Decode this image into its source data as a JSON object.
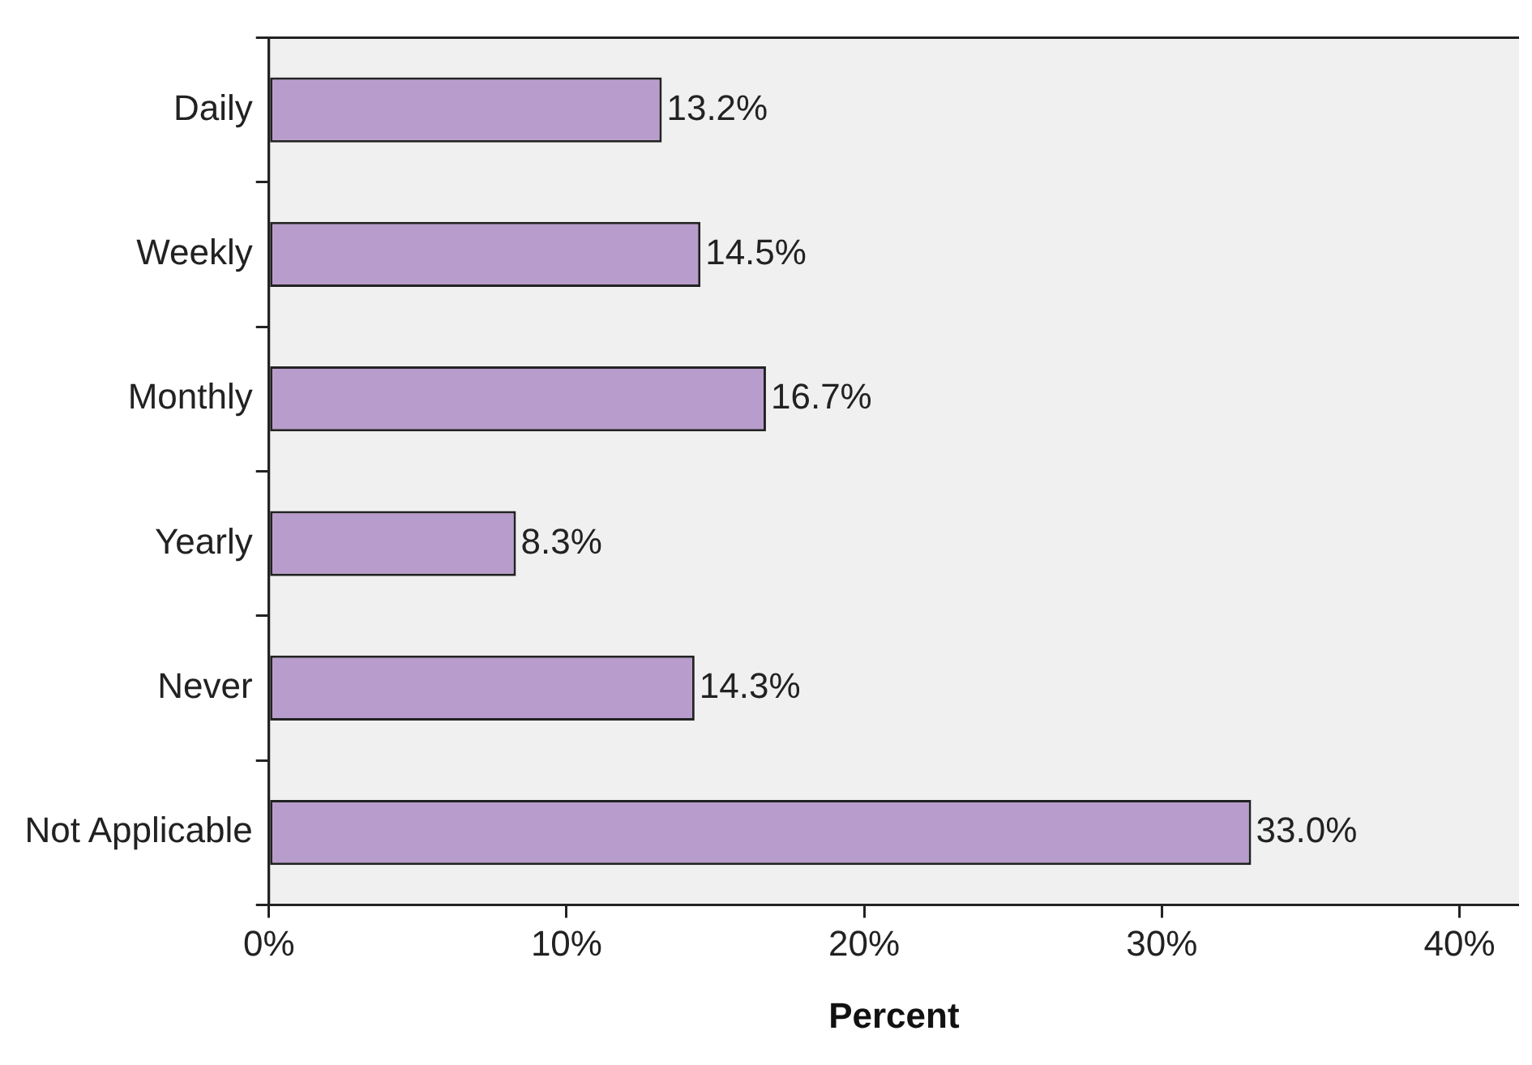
{
  "chart_data": {
    "type": "bar",
    "orientation": "horizontal",
    "xlabel": "Percent",
    "categories": [
      "Daily",
      "Weekly",
      "Monthly",
      "Yearly",
      "Never",
      "Not Applicable"
    ],
    "values": [
      13.2,
      14.5,
      16.7,
      8.3,
      14.3,
      33.0
    ],
    "value_labels": [
      "13.2%",
      "14.5%",
      "16.7%",
      "8.3%",
      "14.3%",
      "33.0%"
    ],
    "color": "#b89ccc",
    "xlim": [
      0,
      42
    ],
    "xticks": [
      {
        "value": 0,
        "label": "0%"
      },
      {
        "value": 10,
        "label": "10%"
      },
      {
        "value": 20,
        "label": "20%"
      },
      {
        "value": 30,
        "label": "30%"
      },
      {
        "value": 40,
        "label": "40%"
      }
    ],
    "grid": false,
    "legend": false
  }
}
